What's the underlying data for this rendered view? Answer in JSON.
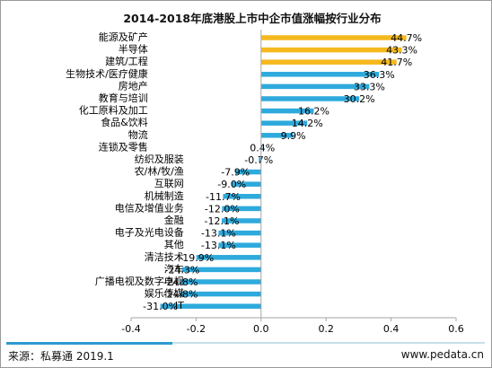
{
  "chart_data": {
    "type": "bar",
    "orientation": "horizontal",
    "title": "2014-2018年底港股上市中企市值涨幅按行业分布",
    "categories": [
      "能源及矿产",
      "半导体",
      "建筑/工程",
      "生物技术/医疗健康",
      "房地产",
      "教育与培训",
      "化工原料及加工",
      "食品&饮料",
      "物流",
      "连锁及零售",
      "纺织及服装",
      "农/林/牧/渔",
      "互联网",
      "机械制造",
      "电信及增值业务",
      "金融",
      "电子及光电设备",
      "其他",
      "清洁技术",
      "汽车",
      "广播电视及数字电视",
      "娱乐传媒",
      "IT"
    ],
    "values": [
      0.447,
      0.433,
      0.417,
      0.363,
      0.333,
      0.302,
      0.162,
      0.142,
      0.099,
      0.004,
      -0.007,
      -0.079,
      -0.09,
      -0.117,
      -0.12,
      -0.121,
      -0.131,
      -0.131,
      -0.199,
      -0.243,
      -0.248,
      -0.248,
      -0.31
    ],
    "value_labels": [
      "44.7%",
      "43.3%",
      "41.7%",
      "36.3%",
      "33.3%",
      "30.2%",
      "16.2%",
      "14.2%",
      "9.9%",
      "0.4%",
      "-0.7%",
      "-7.9%",
      "-9.0%",
      "-11.7%",
      "-12.0%",
      "-12.1%",
      "-13.1%",
      "-13.1%",
      "-19.9%",
      "-24.3%",
      "-24.8%",
      "-24.8%",
      "-31.0%"
    ],
    "highlight_count": 3,
    "colors": {
      "highlight": "#f5b91e",
      "normal": "#2eaadc",
      "axis": "#a6a6a6"
    },
    "xlim": [
      -0.4,
      0.6
    ],
    "xticks": [
      "-0.4",
      "-0.2",
      "0.0",
      "0.2",
      "0.4",
      "0.6"
    ],
    "xtick_values": [
      -0.4,
      -0.2,
      0.0,
      0.2,
      0.4,
      0.6
    ],
    "grid": false,
    "legend": "none"
  },
  "footer": {
    "source": "来源：私募通 2019.1",
    "site": "www.pedata.cn"
  }
}
